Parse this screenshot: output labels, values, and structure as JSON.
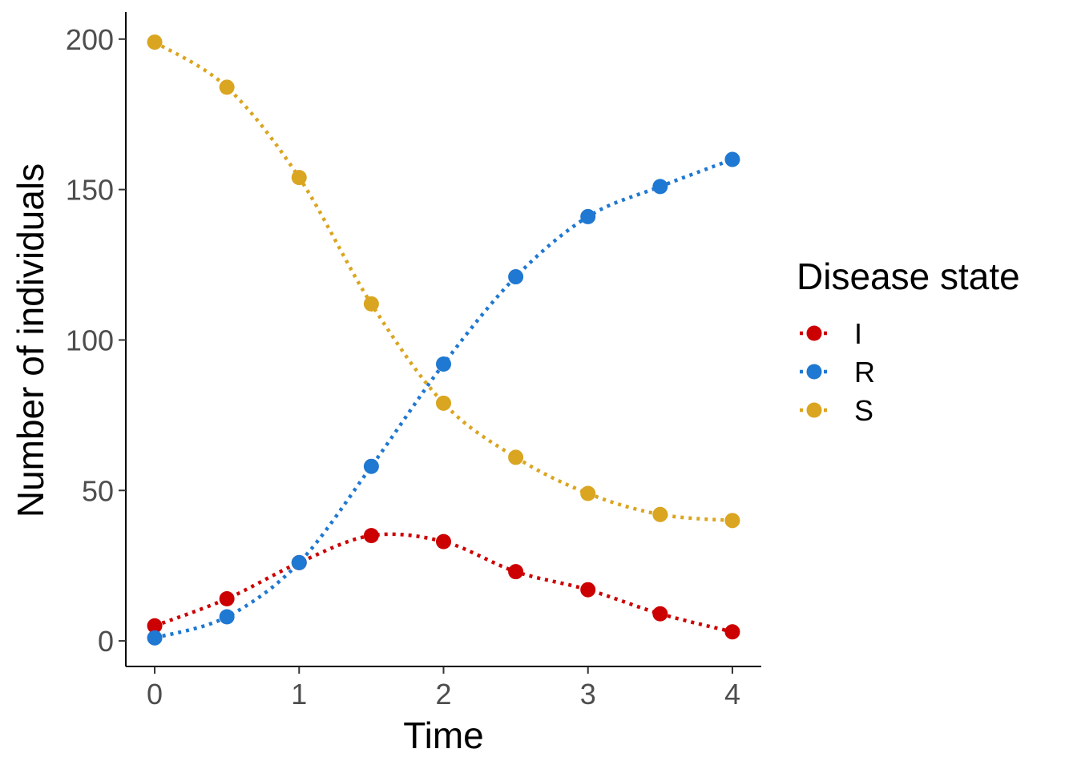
{
  "chart_data": {
    "type": "line",
    "xlabel": "Time",
    "ylabel": "Number of individuals",
    "xlim": [
      -0.2,
      4.2
    ],
    "ylim": [
      -8.5,
      209
    ],
    "x_ticks": [
      0,
      1,
      2,
      3,
      4
    ],
    "y_ticks": [
      0,
      50,
      100,
      150,
      200
    ],
    "grid": false,
    "legend": {
      "title": "Disease state",
      "position": "right"
    },
    "x": [
      0,
      0.5,
      1,
      1.5,
      2,
      2.5,
      3,
      3.5,
      4
    ],
    "series": [
      {
        "name": "I",
        "color": "#cc0000",
        "values": [
          5,
          14,
          26,
          35,
          33,
          23,
          17,
          9,
          3
        ]
      },
      {
        "name": "R",
        "color": "#1f78d1",
        "values": [
          1,
          8,
          26,
          58,
          92,
          121,
          141,
          151,
          160
        ]
      },
      {
        "name": "S",
        "color": "#daa520",
        "values": [
          199,
          184,
          154,
          112,
          79,
          61,
          49,
          42,
          40
        ]
      }
    ]
  }
}
